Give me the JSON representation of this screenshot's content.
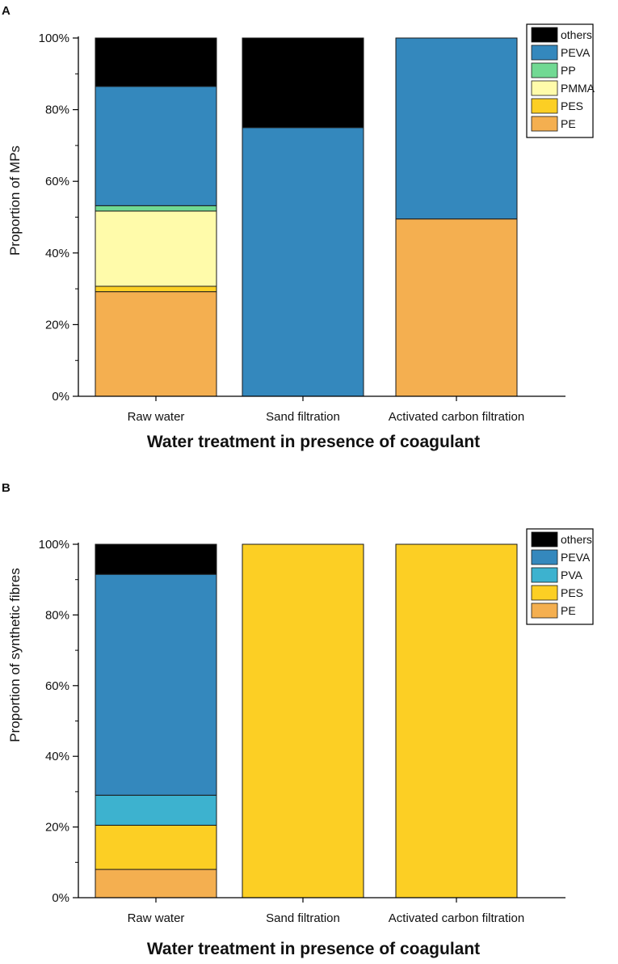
{
  "chart_data": [
    {
      "panel": "A",
      "type": "bar",
      "stacked": true,
      "categories": [
        "Raw water",
        "Sand filtration",
        "Activated carbon filtration"
      ],
      "ylabel": "Proportion of MPs",
      "xlabel": "Water treatment in presence of coagulant",
      "ylim": [
        0,
        100
      ],
      "yticks": [
        "0%",
        "20%",
        "40%",
        "60%",
        "80%",
        "100%"
      ],
      "series": [
        {
          "name": "PE",
          "color": "#F4AF50",
          "values": [
            29.2,
            0,
            49.5
          ]
        },
        {
          "name": "PES",
          "color": "#FCCF24",
          "values": [
            1.5,
            0,
            0
          ]
        },
        {
          "name": "PMMA",
          "color": "#FFFBAA",
          "values": [
            21.0,
            0,
            0
          ]
        },
        {
          "name": "PP",
          "color": "#71D993",
          "values": [
            1.5,
            0,
            0
          ]
        },
        {
          "name": "PEVA",
          "color": "#3488BD",
          "values": [
            33.3,
            75.0,
            50.5
          ]
        },
        {
          "name": "others",
          "color": "#000000",
          "values": [
            13.5,
            25.0,
            0
          ]
        }
      ],
      "legend": [
        "others",
        "PEVA",
        "PP",
        "PMMA",
        "PES",
        "PE"
      ]
    },
    {
      "panel": "B",
      "type": "bar",
      "stacked": true,
      "categories": [
        "Raw water",
        "Sand filtration",
        "Activated carbon filtration"
      ],
      "ylabel": "Proportion of synthetic fibres",
      "xlabel": "Water treatment in presence of coagulant",
      "ylim": [
        0,
        100
      ],
      "yticks": [
        "0%",
        "20%",
        "40%",
        "60%",
        "80%",
        "100%"
      ],
      "series": [
        {
          "name": "PE",
          "color": "#F4AF50",
          "values": [
            8.0,
            0,
            0
          ]
        },
        {
          "name": "PES",
          "color": "#FCCF24",
          "values": [
            12.5,
            100,
            100
          ]
        },
        {
          "name": "PVA",
          "color": "#3DB2CF",
          "values": [
            8.5,
            0,
            0
          ]
        },
        {
          "name": "PEVA",
          "color": "#3488BD",
          "values": [
            62.5,
            0,
            0
          ]
        },
        {
          "name": "others",
          "color": "#000000",
          "values": [
            8.5,
            0,
            0
          ]
        }
      ],
      "legend": [
        "others",
        "PEVA",
        "PVA",
        "PES",
        "PE"
      ]
    }
  ]
}
